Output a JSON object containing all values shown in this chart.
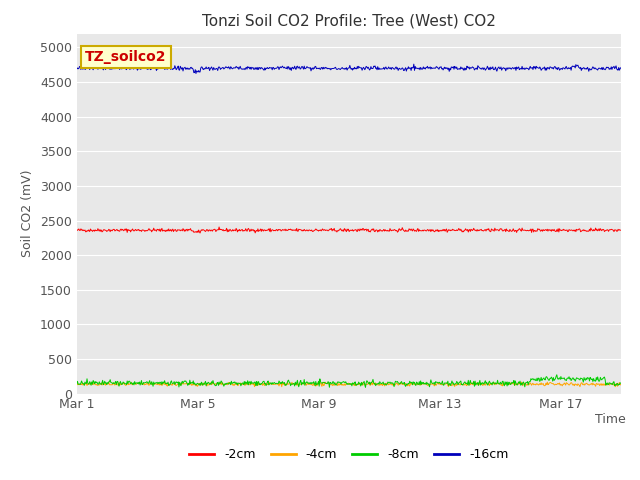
{
  "title": "Tonzi Soil CO2 Profile: Tree (West) CO2",
  "ylabel": "Soil CO2 (mV)",
  "xlabel": "Time",
  "watermark_text": "TZ_soilco2",
  "xlim_days": [
    0,
    18
  ],
  "ylim": [
    0,
    5200
  ],
  "yticks": [
    0,
    500,
    1000,
    1500,
    2000,
    2500,
    3000,
    3500,
    4000,
    4500,
    5000
  ],
  "xtick_labels": [
    "Mar 1",
    "Mar 5",
    "Mar 9",
    "Mar 13",
    "Mar 17"
  ],
  "xtick_positions": [
    0,
    4,
    8,
    12,
    16
  ],
  "plot_bg_color": "#e8e8e8",
  "fig_background": "#ffffff",
  "series": {
    "-2cm": {
      "color": "#ff0000",
      "mean": 2360,
      "noise": 12
    },
    "-4cm": {
      "color": "#ffa500",
      "mean": 135,
      "noise": 12
    },
    "-8cm": {
      "color": "#00cc00",
      "mean": 150,
      "noise": 20
    },
    "-16cm": {
      "color": "#0000bb",
      "mean": 4700,
      "noise": 15
    }
  },
  "n_points": 800,
  "legend_labels": [
    "-2cm",
    "-4cm",
    "-8cm",
    "-16cm"
  ],
  "legend_colors": [
    "#ff0000",
    "#ffa500",
    "#00cc00",
    "#0000bb"
  ],
  "watermark_color": "#cc0000",
  "watermark_bg": "#ffffcc",
  "watermark_border": "#ccaa00",
  "tick_color": "#555555",
  "title_color": "#333333",
  "label_color": "#555555"
}
